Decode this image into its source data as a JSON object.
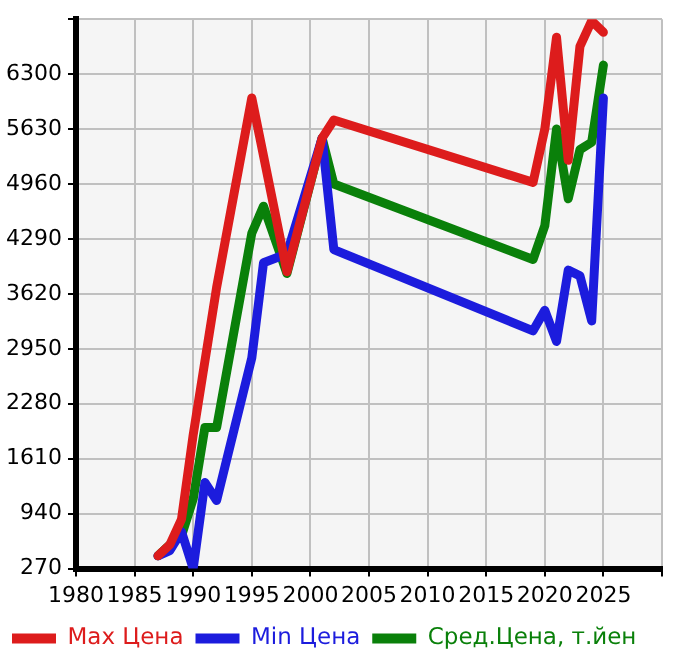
{
  "chart_data": {
    "type": "line",
    "x": [
      1987,
      1988,
      1989,
      1990,
      1991,
      1992,
      1995,
      1996,
      1998,
      2001,
      2002,
      2019,
      2020,
      2021,
      2022,
      2023,
      2024,
      2025
    ],
    "series": [
      {
        "name": "Max Цена",
        "color": "#dd1c1c",
        "values": [
          426,
          560,
          870,
          1900,
          2800,
          3700,
          6010,
          null,
          3890,
          5520,
          5740,
          4980,
          5630,
          6750,
          5250,
          6640,
          6950,
          6810
        ]
      },
      {
        "name": "Min Цена",
        "color": "#1c1cdd",
        "values": [
          426,
          490,
          720,
          270,
          1320,
          1100,
          2840,
          4000,
          4110,
          5520,
          4160,
          3170,
          3420,
          3040,
          3910,
          3840,
          3290,
          6010
        ]
      },
      {
        "name": "Сред.Цена, т.йен",
        "color": "#0a800a",
        "values": [
          426,
          560,
          670,
          1120,
          1990,
          1990,
          4360,
          4690,
          3870,
          5520,
          4960,
          4040,
          4450,
          5630,
          4780,
          5380,
          5470,
          6410
        ]
      }
    ],
    "xlim": [
      1980,
      2030
    ],
    "xticks": [
      1980,
      1985,
      1990,
      1995,
      2000,
      2005,
      2010,
      2015,
      2020,
      2025,
      {
        "value": 2030,
        "label": null
      }
    ],
    "ylim": [
      270,
      6970
    ],
    "yticks": [
      270,
      940,
      1610,
      2280,
      2950,
      3620,
      4290,
      4960,
      5630,
      6300,
      {
        "value": 6970,
        "label": null
      }
    ],
    "grid": true,
    "legend": "bottom",
    "marker": "none",
    "line_style": "solid"
  }
}
